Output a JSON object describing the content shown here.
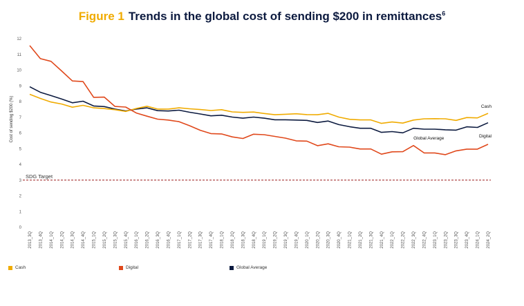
{
  "header": {
    "figure_label": "Figure 1",
    "title": "Trends in the global cost of sending $200 in remittances",
    "footnote": "6"
  },
  "chart_data": {
    "type": "line",
    "title": "Trends in the global cost of sending $200 in remittances",
    "xlabel": "",
    "ylabel": "Cost of sending $200 (%)",
    "ylim": [
      0,
      12
    ],
    "yticks": [
      0,
      1,
      2,
      3,
      4,
      5,
      6,
      7,
      8,
      9,
      10,
      11,
      12
    ],
    "grid": false,
    "legend_position": "bottom",
    "categories": [
      "2013_3Q",
      "2013_4Q",
      "2014_1Q",
      "2014_2Q",
      "2014_3Q",
      "2014_4Q",
      "2015_1Q",
      "2015_2Q",
      "2015_3Q",
      "2015_4Q",
      "2016_1Q",
      "2016_2Q",
      "2016_3Q",
      "2016_4Q",
      "2017_1Q",
      "2017_2Q",
      "2017_3Q",
      "2017_4Q",
      "2018_1Q",
      "2018_2Q",
      "2018_3Q",
      "2018_4Q",
      "2019_1Q",
      "2019_2Q",
      "2019_3Q",
      "2019_4Q",
      "2020_1Q",
      "2020_2Q",
      "2020_3Q",
      "2020_4Q",
      "2021_1Q",
      "2021_2Q",
      "2021_3Q",
      "2021_4Q",
      "2022_1Q",
      "2022_2Q",
      "2022_3Q",
      "2022_4Q",
      "2023_1Q",
      "2023_2Q",
      "2023_3Q",
      "2023_4Q",
      "2024_1Q",
      "2024_2Q"
    ],
    "series": [
      {
        "name": "Cash",
        "color": "#f0ab00",
        "label": "Cash",
        "values": [
          8.46,
          8.2,
          7.97,
          7.84,
          7.64,
          7.76,
          7.6,
          7.55,
          7.48,
          7.37,
          7.56,
          7.7,
          7.52,
          7.52,
          7.6,
          7.54,
          7.49,
          7.43,
          7.48,
          7.34,
          7.31,
          7.33,
          7.24,
          7.16,
          7.19,
          7.22,
          7.17,
          7.16,
          7.25,
          7.01,
          6.87,
          6.83,
          6.83,
          6.61,
          6.7,
          6.63,
          6.82,
          6.9,
          6.91,
          6.9,
          6.8,
          6.98,
          6.96,
          7.25
        ]
      },
      {
        "name": "Digital",
        "color": "#e0481b",
        "label": "Digital",
        "values": [
          11.56,
          10.73,
          10.56,
          9.94,
          9.31,
          9.27,
          8.27,
          8.28,
          7.69,
          7.65,
          7.27,
          7.07,
          6.88,
          6.82,
          6.72,
          6.46,
          6.17,
          5.96,
          5.94,
          5.75,
          5.65,
          5.92,
          5.89,
          5.78,
          5.67,
          5.5,
          5.48,
          5.19,
          5.31,
          5.12,
          5.1,
          4.98,
          4.98,
          4.65,
          4.8,
          4.81,
          5.2,
          4.73,
          4.73,
          4.62,
          4.86,
          4.97,
          4.97,
          5.28
        ]
      },
      {
        "name": "Global Average",
        "color": "#0c1a3f",
        "label": "Global Average",
        "values": [
          8.94,
          8.59,
          8.38,
          8.16,
          7.92,
          8.02,
          7.72,
          7.68,
          7.52,
          7.4,
          7.52,
          7.6,
          7.42,
          7.4,
          7.45,
          7.32,
          7.21,
          7.09,
          7.13,
          7.01,
          6.94,
          7.01,
          6.94,
          6.84,
          6.84,
          6.82,
          6.8,
          6.67,
          6.76,
          6.53,
          6.4,
          6.3,
          6.3,
          6.04,
          6.09,
          6.01,
          6.3,
          6.24,
          6.24,
          6.2,
          6.18,
          6.39,
          6.35,
          6.65
        ]
      }
    ],
    "reference_line": {
      "label": "SDG Target",
      "value": 3,
      "color": "#9b1b1b"
    }
  }
}
